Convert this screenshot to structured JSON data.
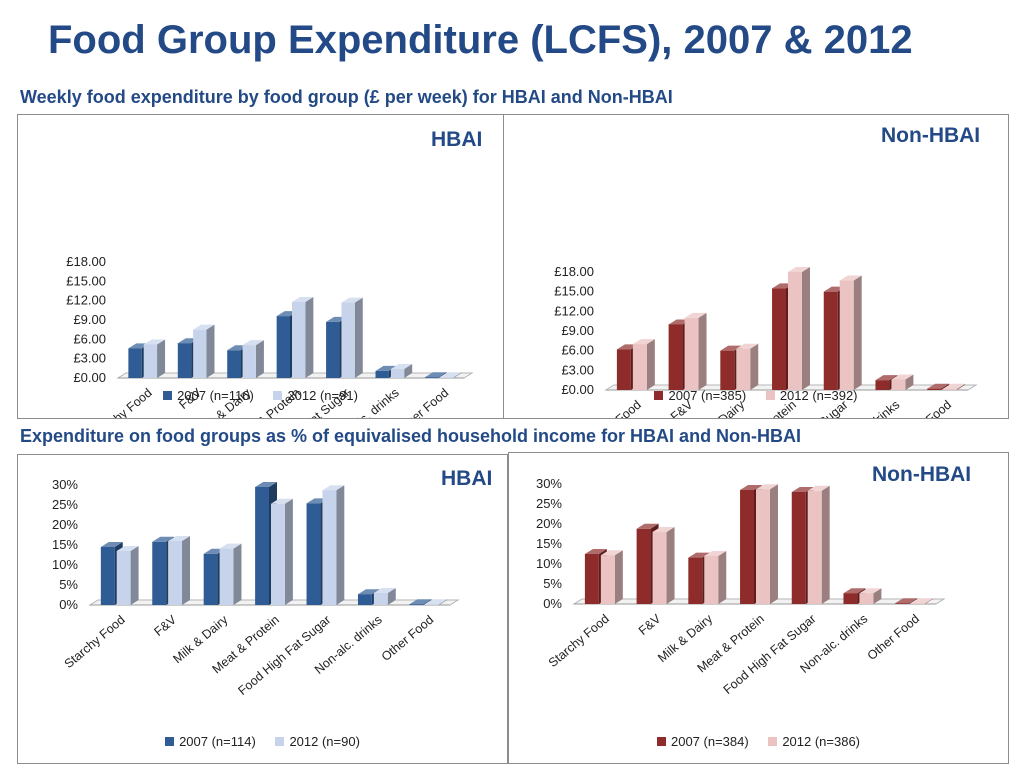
{
  "title": "Food Group Expenditure (LCFS), 2007 & 2012",
  "subtitle_weekly": "Weekly food expenditure by food group (£ per week)  for HBAI and Non-HBAI",
  "subtitle_percent": "Expenditure on food groups as % of equivalised  household income for HBAI and Non-HBAI",
  "colors": {
    "hbai_2007": "#2f5c94",
    "hbai_2012": "#c6d3ea",
    "non_2007": "#8e2c2c",
    "non_2012": "#ebc3c3"
  },
  "chart_data": [
    {
      "id": "weekly-hbai",
      "type": "bar",
      "panel_label": "HBAI",
      "categories": [
        "Starchy Food",
        "F&V",
        "Milk & Dairy",
        "Meat & Protein",
        "Food High Fat Sugar",
        "Non-alc. drinks",
        "Other Food"
      ],
      "ylim": [
        0,
        18
      ],
      "yticks": [
        "£0.00",
        "£3.00",
        "£6.00",
        "£9.00",
        "£12.00",
        "£15.00",
        "£18.00"
      ],
      "series": [
        {
          "name": "2007 (n=116)",
          "values": [
            4.6,
            5.4,
            4.3,
            9.6,
            8.7,
            1.1,
            0.1
          ]
        },
        {
          "name": "2012 (n=91)",
          "values": [
            5.2,
            7.5,
            5.1,
            11.8,
            11.7,
            1.4,
            0.1
          ]
        }
      ]
    },
    {
      "id": "weekly-non",
      "type": "bar",
      "panel_label": "Non-HBAI",
      "categories": [
        "Starchy Food",
        "F&V",
        "Milk & Dairy",
        "Meat & Protein",
        "Food High Fat Sugar",
        "Non-alc. drinks",
        "Other Food"
      ],
      "ylim": [
        0,
        18
      ],
      "yticks": [
        "£0.00",
        "£3.00",
        "£6.00",
        "£9.00",
        "£12.00",
        "£15.00",
        "£18.00"
      ],
      "series": [
        {
          "name": "2007 (n=385)",
          "values": [
            6.2,
            10.0,
            6.0,
            15.5,
            15.0,
            1.5,
            0.2
          ]
        },
        {
          "name": "2012 (n=392)",
          "values": [
            7.0,
            11.0,
            6.3,
            18.0,
            16.7,
            1.6,
            0.2
          ]
        }
      ]
    },
    {
      "id": "percent-hbai",
      "type": "bar",
      "panel_label": "HBAI",
      "categories": [
        "Starchy Food",
        "F&V",
        "Milk & Dairy",
        "Meat & Protein",
        "Food High Fat Sugar",
        "Non-alc. drinks",
        "Other Food"
      ],
      "ylim": [
        0,
        30
      ],
      "yticks": [
        "0%",
        "5%",
        "10%",
        "15%",
        "20%",
        "25%",
        "30%"
      ],
      "series": [
        {
          "name": "2007 (n=114)",
          "values": [
            14.5,
            15.8,
            12.8,
            29.5,
            25.4,
            2.7,
            0.2
          ]
        },
        {
          "name": "2012 (n=90)",
          "values": [
            13.5,
            16.0,
            14.1,
            25.3,
            28.7,
            3.0,
            0.2
          ]
        }
      ]
    },
    {
      "id": "percent-non",
      "type": "bar",
      "panel_label": "Non-HBAI",
      "categories": [
        "Starchy Food",
        "F&V",
        "Milk & Dairy",
        "Meat & Protein",
        "Food High Fat Sugar",
        "Non-alc. drinks",
        "Other Food"
      ],
      "ylim": [
        0,
        30
      ],
      "yticks": [
        "0%",
        "5%",
        "10%",
        "15%",
        "20%",
        "25%",
        "30%"
      ],
      "series": [
        {
          "name": "2007 (n=384)",
          "values": [
            12.5,
            18.8,
            11.6,
            28.5,
            28.0,
            2.7,
            0.2
          ]
        },
        {
          "name": "2012 (n=386)",
          "values": [
            12.2,
            18.0,
            12.0,
            28.7,
            28.3,
            2.7,
            0.2
          ]
        }
      ]
    }
  ]
}
